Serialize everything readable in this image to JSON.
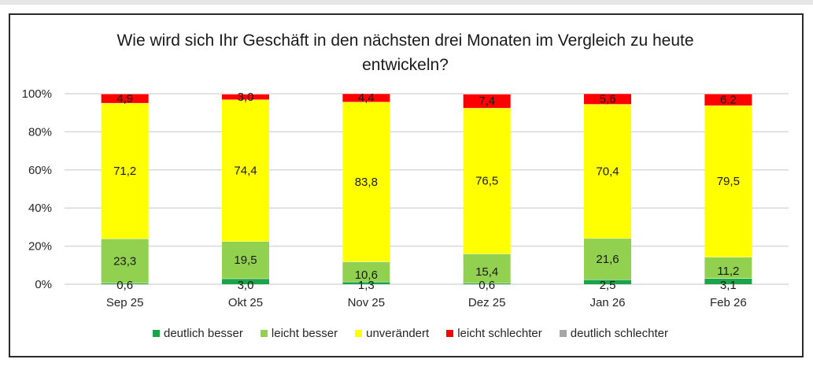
{
  "chart_data": {
    "type": "bar",
    "stacked": true,
    "percent": true,
    "title": "Wie wird sich Ihr Geschäft in den nächsten drei Monaten im Vergleich zu heute entwickeln?",
    "title_lines": [
      "Wie wird sich Ihr Geschäft in den nächsten drei Monaten im Vergleich zu heute",
      "entwickeln?"
    ],
    "xlabel": "",
    "ylabel": "",
    "ylim": [
      0,
      100
    ],
    "yticks": [
      "0%",
      "20%",
      "40%",
      "60%",
      "80%",
      "100%"
    ],
    "grid": true,
    "legend_position": "bottom",
    "categories": [
      "Sep 25",
      "Okt 25",
      "Nov 25",
      "Dez 25",
      "Jan 26",
      "Feb 26"
    ],
    "series": [
      {
        "name": "deutlich besser",
        "color": "#1aa34a",
        "values": [
          0.6,
          3.0,
          1.3,
          0.6,
          2.5,
          3.1
        ],
        "labels": [
          "0,6",
          "3,0",
          "1,3",
          "0,6",
          "2,5",
          "3,1"
        ]
      },
      {
        "name": "leicht besser",
        "color": "#92d050",
        "values": [
          23.3,
          19.5,
          10.6,
          15.4,
          21.6,
          11.2
        ],
        "labels": [
          "23,3",
          "19,5",
          "10,6",
          "15,4",
          "21,6",
          "11,2"
        ]
      },
      {
        "name": "unverändert",
        "color": "#ffff00",
        "values": [
          71.2,
          74.4,
          83.8,
          76.5,
          70.4,
          79.5
        ],
        "labels": [
          "71,2",
          "74,4",
          "83,8",
          "76,5",
          "70,4",
          "79,5"
        ]
      },
      {
        "name": "leicht schlechter",
        "color": "#ff0000",
        "values": [
          4.9,
          3.0,
          4.4,
          7.4,
          5.6,
          6.2
        ],
        "labels": [
          "4,9",
          "3,0",
          "4,4",
          "7,4",
          "5,6",
          "6,2"
        ]
      },
      {
        "name": "deutlich schlechter",
        "color": "#a6a6a6",
        "values": [
          0,
          0,
          0,
          0,
          0,
          0
        ],
        "labels": []
      }
    ]
  }
}
